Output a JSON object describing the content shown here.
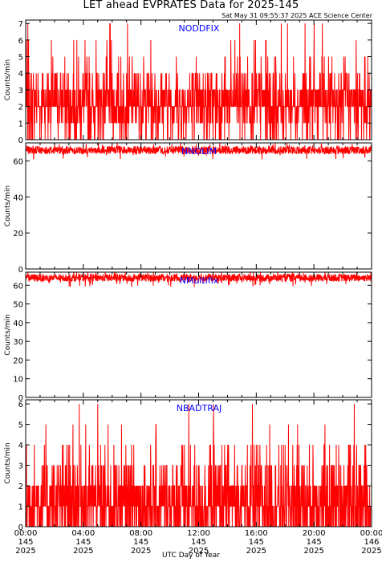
{
  "title": "LET ahead EVPRATES Data for 2025-145",
  "timestamp": "Sat May 31 09:55:37 2025 ACE Science Center",
  "xlabel": "UTC Day of Year",
  "colors": {
    "series": "#ff0000",
    "panel_label": "#0000ff",
    "axis": "#000000",
    "background": "#ffffff"
  },
  "x_ticks": [
    {
      "time": "00:00",
      "doy": "145",
      "year": "2025"
    },
    {
      "time": "04:00",
      "doy": "145",
      "year": "2025"
    },
    {
      "time": "08:00",
      "doy": "145",
      "year": "2025"
    },
    {
      "time": "12:00",
      "doy": "145",
      "year": "2025"
    },
    {
      "time": "16:00",
      "doy": "145",
      "year": "2025"
    },
    {
      "time": "20:00",
      "doy": "145",
      "year": "2025"
    },
    {
      "time": "00:00",
      "doy": "146",
      "year": "2025"
    }
  ],
  "chart_data": [
    {
      "type": "line",
      "label": "NODDFIX",
      "ylabel": "Counts/min",
      "ylim": [
        0,
        7.2
      ],
      "yticks": [
        0,
        1,
        2,
        3,
        4,
        5,
        6,
        7
      ],
      "xlim_hours": [
        0,
        24
      ],
      "series": [
        {
          "values_summary": {
            "typical": 2,
            "min": 0,
            "max": 7,
            "sampling": "1 per minute"
          }
        }
      ]
    },
    {
      "type": "line",
      "label": "NNOLIM",
      "ylabel": "Counts/min",
      "ylim": [
        0,
        70
      ],
      "yticks": [
        0,
        20,
        40,
        60
      ],
      "xlim_hours": [
        0,
        24
      ],
      "series": [
        {
          "values_summary": {
            "typical": 66,
            "min": 62,
            "max": 69,
            "sampling": "1 per minute"
          }
        }
      ]
    },
    {
      "type": "line",
      "label": "NMultifix",
      "ylabel": "Counts/min",
      "ylim": [
        0,
        67
      ],
      "yticks": [
        0,
        10,
        20,
        30,
        40,
        50,
        60
      ],
      "xlim_hours": [
        0,
        24
      ],
      "series": [
        {
          "values_summary": {
            "typical": 64,
            "min": 61,
            "max": 67,
            "sampling": "1 per minute"
          }
        }
      ]
    },
    {
      "type": "line",
      "label": "NBADTRAJ",
      "ylabel": "Counts/min",
      "ylim": [
        0,
        6.2
      ],
      "yticks": [
        0,
        1,
        2,
        3,
        4,
        5,
        6
      ],
      "xlim_hours": [
        0,
        24
      ],
      "series": [
        {
          "values_summary": {
            "typical": 1,
            "min": 0,
            "max": 6,
            "sampling": "1 per minute"
          }
        }
      ]
    }
  ]
}
